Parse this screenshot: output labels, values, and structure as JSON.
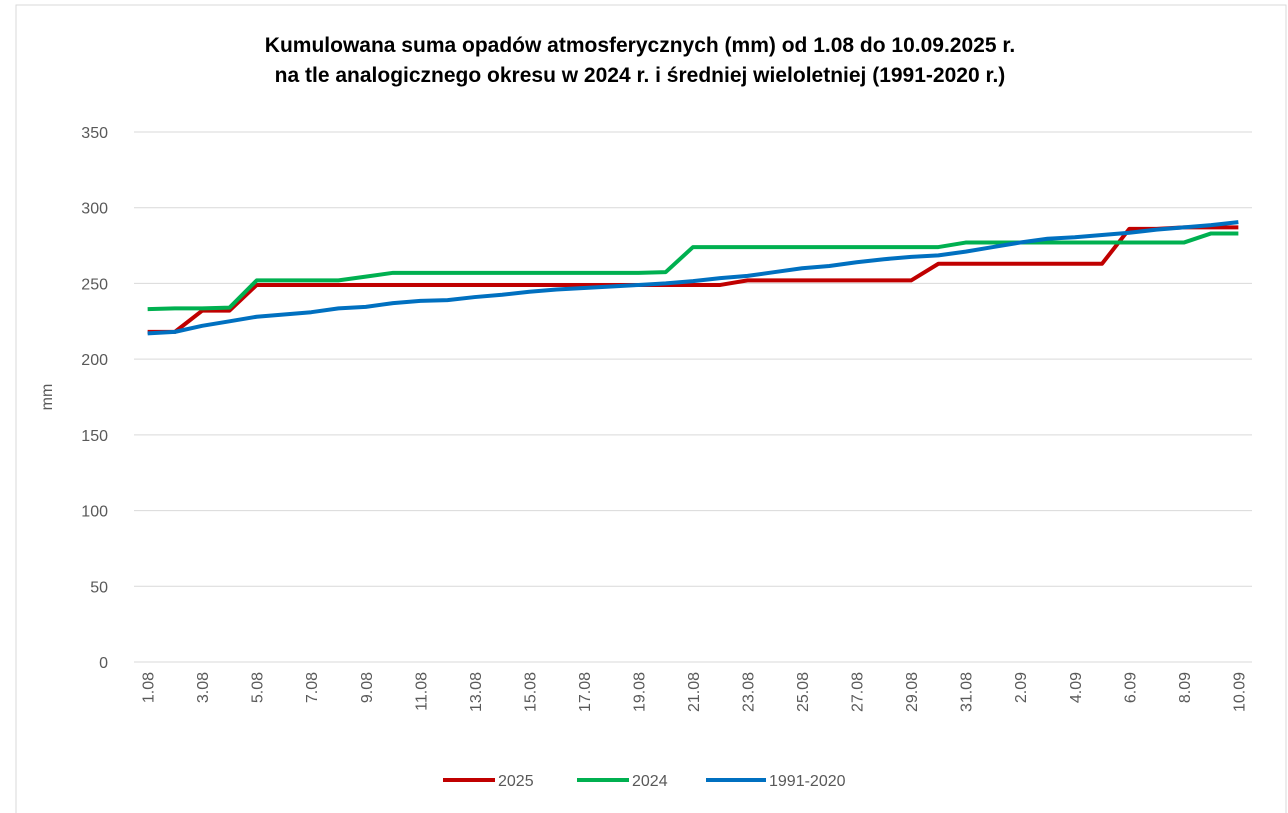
{
  "chart_data": {
    "type": "line",
    "title": [
      "Kumulowana suma opadów atmosferycznych (mm) od 1.08 do 10.09.2025 r.",
      "na tle analogicznego okresu w 2024 r. i średniej wieloletniej (1991-2020 r.)"
    ],
    "y_label": "mm",
    "categories": [
      "1.08",
      null,
      "3.08",
      null,
      "5.08",
      null,
      "7.08",
      null,
      "9.08",
      null,
      "11.08",
      null,
      "13.08",
      null,
      "15.08",
      null,
      "17.08",
      null,
      "19.08",
      null,
      "21.08",
      null,
      "23.08",
      null,
      "25.08",
      null,
      "27.08",
      null,
      "29.08",
      null,
      "31.08",
      null,
      "2.09",
      null,
      "4.09",
      null,
      "6.09",
      null,
      "8.09",
      null,
      "10.09"
    ],
    "series": [
      {
        "name": "2025",
        "color": "#c00000",
        "values": [
          218,
          218,
          232,
          232,
          249,
          249,
          249,
          249,
          249,
          249,
          249,
          249,
          249,
          249,
          249,
          249,
          249,
          249,
          249,
          249,
          249,
          249,
          252,
          252,
          252,
          252,
          252,
          252,
          252,
          263,
          263,
          263,
          263,
          263,
          263,
          263,
          286,
          286,
          287,
          287,
          287
        ]
      },
      {
        "name": "2024",
        "color": "#00b050",
        "values": [
          233,
          233.5,
          233.5,
          234,
          252,
          252,
          252,
          252,
          254.5,
          257,
          257,
          257,
          257,
          257,
          257,
          257,
          257,
          257,
          257,
          257.5,
          274,
          274,
          274,
          274,
          274,
          274,
          274,
          274,
          274,
          274,
          277,
          277,
          277,
          277,
          277,
          277,
          277,
          277,
          277,
          283,
          283
        ]
      },
      {
        "name": "1991-2020",
        "color": "#0070c0",
        "values": [
          217,
          218,
          222,
          225,
          228,
          229.5,
          231,
          233.5,
          234.5,
          237,
          238.5,
          239,
          241,
          242.5,
          244.5,
          246,
          247,
          248,
          249,
          250,
          251.5,
          253.5,
          255,
          257.5,
          260,
          261.5,
          264,
          266,
          267.5,
          268.5,
          271,
          274,
          277,
          279.5,
          280.5,
          282,
          283.5,
          285.5,
          287,
          288.5,
          290.5
        ]
      }
    ],
    "ylim": [
      0,
      350
    ],
    "yticks": [
      0,
      50,
      100,
      150,
      200,
      250,
      300,
      350
    ],
    "grid": true,
    "legend": "bottom"
  }
}
